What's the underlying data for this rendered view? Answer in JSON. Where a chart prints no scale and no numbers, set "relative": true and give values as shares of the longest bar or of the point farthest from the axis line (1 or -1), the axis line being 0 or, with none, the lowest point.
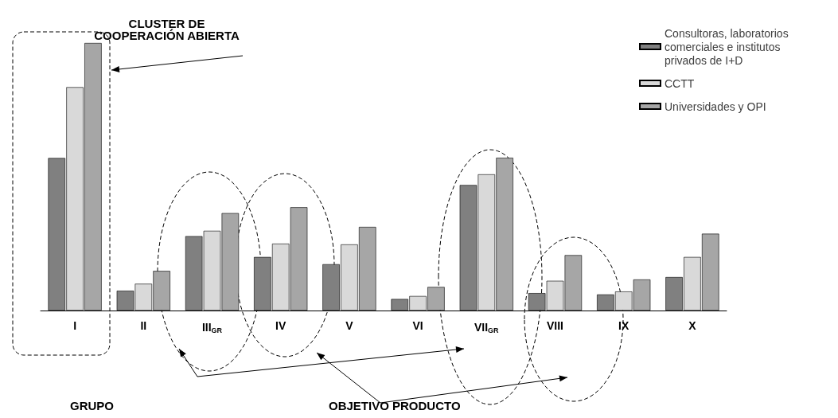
{
  "chart_data": {
    "type": "bar",
    "relative": true,
    "categories": [
      "I",
      "II",
      "III$_{GR}$",
      "IV",
      "V",
      "VI",
      "VII$_{GR}$",
      "VIII",
      "IX",
      "X"
    ],
    "series": [
      {
        "name": "Consultoras, laboratorios comerciales e institutos privados de I+D",
        "color": "#808080",
        "values": [
          0.57,
          0.074,
          0.278,
          0.2,
          0.173,
          0.043,
          0.469,
          0.065,
          0.06,
          0.125
        ]
      },
      {
        "name": "CCTT",
        "color": "#d9d9d9",
        "values": [
          0.835,
          0.1,
          0.298,
          0.25,
          0.247,
          0.054,
          0.509,
          0.111,
          0.071,
          0.2
        ]
      },
      {
        "name": "Universidades y OPI",
        "color": "#a6a6a6",
        "values": [
          1,
          0.148,
          0.364,
          0.386,
          0.3125,
          0.088,
          0.571,
          0.207,
          0.116,
          0.287
        ]
      }
    ],
    "annotations": [
      "CLUSTER DE\nCOOPERACIÓN ABIERTA",
      "GRUPO",
      "OBJETIVO PRODUCTO"
    ],
    "legend": "top right",
    "grid": false
  }
}
